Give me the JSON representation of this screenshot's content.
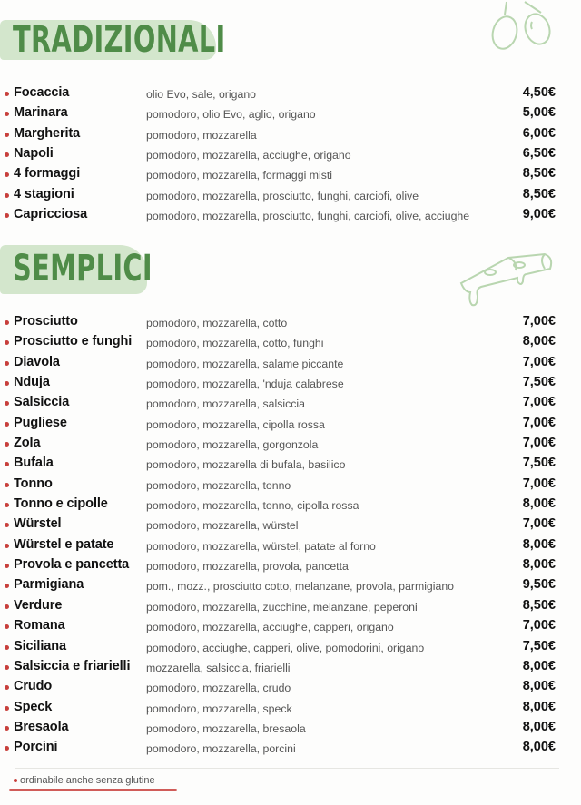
{
  "sections": [
    {
      "title": "TRADIZIONALI",
      "items": [
        {
          "name": "Focaccia",
          "desc": "olio Evo, sale, origano",
          "price": "4,50€"
        },
        {
          "name": "Marinara",
          "desc": "pomodoro, olio Evo, aglio, origano",
          "price": "5,00€"
        },
        {
          "name": "Margherita",
          "desc": "pomodoro, mozzarella",
          "price": "6,00€"
        },
        {
          "name": "Napoli",
          "desc": "pomodoro, mozzarella, acciughe, origano",
          "price": "6,50€"
        },
        {
          "name": "4 formaggi",
          "desc": "pomodoro, mozzarella, formaggi misti",
          "price": "8,50€"
        },
        {
          "name": "4 stagioni",
          "desc": "pomodoro, mozzarella, prosciutto, funghi, carciofi, olive",
          "price": "8,50€"
        },
        {
          "name": "Capricciosa",
          "desc": "pomodoro, mozzarella, prosciutto, funghi, carciofi, olive, acciughe",
          "price": "9,00€"
        }
      ]
    },
    {
      "title": "SEMPLICI",
      "items": [
        {
          "name": "Prosciutto",
          "desc": "pomodoro, mozzarella, cotto",
          "price": "7,00€"
        },
        {
          "name": "Prosciutto e funghi",
          "desc": "pomodoro, mozzarella, cotto, funghi",
          "price": "8,00€"
        },
        {
          "name": "Diavola",
          "desc": "pomodoro, mozzarella, salame piccante",
          "price": "7,00€"
        },
        {
          "name": "Nduja",
          "desc": "pomodoro, mozzarella, 'nduja calabrese",
          "price": "7,50€"
        },
        {
          "name": "Salsiccia",
          "desc": "pomodoro, mozzarella, salsiccia",
          "price": "7,00€"
        },
        {
          "name": "Pugliese",
          "desc": "pomodoro, mozzarella, cipolla rossa",
          "price": "7,00€"
        },
        {
          "name": "Zola",
          "desc": "pomodoro, mozzarella, gorgonzola",
          "price": "7,00€"
        },
        {
          "name": "Bufala",
          "desc": "pomodoro, mozzarella di bufala, basilico",
          "price": "7,50€"
        },
        {
          "name": "Tonno",
          "desc": "pomodoro, mozzarella, tonno",
          "price": "7,00€"
        },
        {
          "name": "Tonno e cipolle",
          "desc": "pomodoro, mozzarella, tonno, cipolla rossa",
          "price": "8,00€"
        },
        {
          "name": "Würstel",
          "desc": "pomodoro, mozzarella, würstel",
          "price": "7,00€"
        },
        {
          "name": "Würstel e patate",
          "desc": "pomodoro, mozzarella, würstel, patate al forno",
          "price": "8,00€"
        },
        {
          "name": "Provola e pancetta",
          "desc": "pomodoro, mozzarella, provola, pancetta",
          "price": "8,00€"
        },
        {
          "name": "Parmigiana",
          "desc": "pom., mozz., prosciutto cotto, melanzane, provola, parmigiano",
          "price": "9,50€"
        },
        {
          "name": "Verdure",
          "desc": "pomodoro, mozzarella, zucchine, melanzane, peperoni",
          "price": "8,50€"
        },
        {
          "name": "Romana",
          "desc": "pomodoro, mozzarella, acciughe, capperi, origano",
          "price": "7,00€"
        },
        {
          "name": "Siciliana",
          "desc": "pomodoro, acciughe, capperi, olive, pomodorini, origano",
          "price": "7,50€"
        },
        {
          "name": "Salsiccia e friarielli",
          "desc": "mozzarella, salsiccia, friarielli",
          "price": "8,00€"
        },
        {
          "name": "Crudo",
          "desc": "pomodoro, mozzarella, crudo",
          "price": "8,00€"
        },
        {
          "name": "Speck",
          "desc": "pomodoro, mozzarella, speck",
          "price": "8,00€"
        },
        {
          "name": "Bresaola",
          "desc": "pomodoro, mozzarella, bresaola",
          "price": "8,00€"
        },
        {
          "name": "Porcini",
          "desc": "pomodoro, mozzarella, porcini",
          "price": "8,00€"
        }
      ]
    }
  ],
  "footnote": "ordinabile anche senza glutine",
  "colors": {
    "accent_green": "#4f8c48",
    "brush_green": "#d3e6cc",
    "bullet_red": "#c8403c"
  },
  "icons": [
    "olives-illustration",
    "pizza-slice-illustration"
  ]
}
